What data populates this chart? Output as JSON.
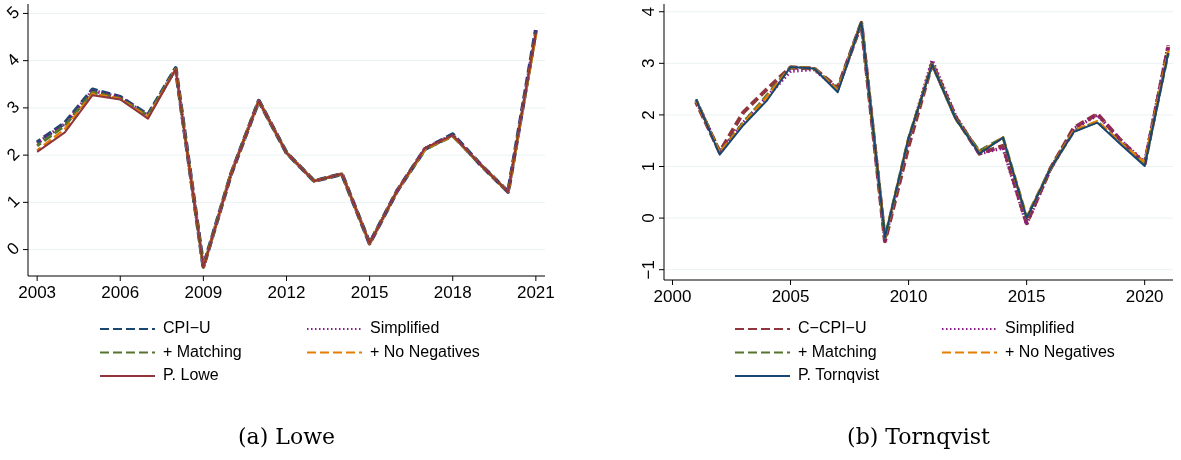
{
  "chart_data": [
    {
      "type": "line",
      "title": "(a) Lowe",
      "x": [
        2003,
        2004,
        2005,
        2006,
        2007,
        2008,
        2009,
        2010,
        2011,
        2012,
        2013,
        2014,
        2015,
        2016,
        2017,
        2018,
        2019,
        2020,
        2021
      ],
      "xlim": [
        2002.67,
        2021.33
      ],
      "xticks": [
        2003,
        2006,
        2009,
        2012,
        2015,
        2018,
        2021
      ],
      "ylim": [
        -0.56,
        5.2
      ],
      "yticks": [
        0,
        1,
        2,
        3,
        4,
        5
      ],
      "grid": "y",
      "legend": "bottom",
      "series": [
        {
          "name": "CPI−U",
          "color": "#1a476f",
          "line_style": "dashed",
          "values": [
            2.27,
            2.68,
            3.39,
            3.23,
            2.85,
            3.84,
            -0.36,
            1.6,
            3.15,
            2.05,
            1.45,
            1.6,
            0.13,
            1.25,
            2.13,
            2.44,
            1.8,
            1.22,
            4.65
          ]
        },
        {
          "name": "Simplified",
          "color": "#8b1a8b",
          "line_style": "dotted",
          "values": [
            2.25,
            2.66,
            3.37,
            3.22,
            2.84,
            3.83,
            -0.37,
            1.6,
            3.15,
            2.05,
            1.45,
            1.6,
            0.13,
            1.25,
            2.14,
            2.43,
            1.8,
            1.22,
            4.62
          ]
        },
        {
          "name": "+ Matching",
          "color": "#55752f",
          "line_style": "dashed",
          "values": [
            2.2,
            2.62,
            3.33,
            3.2,
            2.83,
            3.82,
            -0.37,
            1.62,
            3.15,
            2.05,
            1.45,
            1.6,
            0.13,
            1.25,
            2.12,
            2.4,
            1.8,
            1.22,
            4.57
          ]
        },
        {
          "name": "+ No Negatives",
          "color": "#e37e00",
          "line_style": "dashed",
          "values": [
            2.1,
            2.55,
            3.3,
            3.19,
            2.8,
            3.82,
            -0.38,
            1.6,
            3.15,
            2.05,
            1.45,
            1.6,
            0.13,
            1.25,
            2.13,
            2.41,
            1.8,
            1.22,
            4.55
          ]
        },
        {
          "name": "P. Lowe",
          "color": "#90353b",
          "line_style": "solid",
          "values": [
            2.07,
            2.48,
            3.27,
            3.18,
            2.77,
            3.82,
            -0.38,
            1.6,
            3.15,
            2.05,
            1.45,
            1.6,
            0.13,
            1.25,
            2.15,
            2.42,
            1.8,
            1.22,
            4.6
          ]
        }
      ]
    },
    {
      "type": "line",
      "title": "(b) Tornqvist",
      "x": [
        2001,
        2002,
        2003,
        2004,
        2005,
        2006,
        2007,
        2008,
        2009,
        2010,
        2011,
        2012,
        2013,
        2014,
        2015,
        2016,
        2017,
        2018,
        2019,
        2020,
        2021
      ],
      "xlim": [
        1999.64,
        2021.2
      ],
      "xticks": [
        2000,
        2005,
        2010,
        2015,
        2020
      ],
      "ylim": [
        -1.2,
        4.15
      ],
      "yticks": [
        {
          "value": -1,
          "label": "−1"
        },
        0,
        1,
        2,
        3,
        4
      ],
      "grid": "y",
      "legend": "bottom",
      "series": [
        {
          "name": "C−CPI−U",
          "color": "#90353b",
          "line_style": "dashed",
          "values": [
            2.25,
            1.28,
            2.05,
            2.5,
            2.92,
            2.9,
            2.52,
            3.78,
            -0.45,
            1.4,
            3.0,
            1.95,
            1.25,
            1.4,
            -0.1,
            0.95,
            1.75,
            2.02,
            1.5,
            1.05,
            3.32
          ]
        },
        {
          "name": "Simplified",
          "color": "#8b1a8b",
          "line_style": "dotted",
          "values": [
            2.28,
            1.28,
            1.85,
            2.35,
            2.85,
            2.88,
            2.5,
            3.78,
            -0.42,
            1.5,
            3.06,
            1.97,
            1.25,
            1.36,
            -0.12,
            0.95,
            1.73,
            2.0,
            1.5,
            1.08,
            3.35
          ]
        },
        {
          "name": "+ Matching",
          "color": "#55752f",
          "line_style": "dashed",
          "values": [
            2.3,
            1.27,
            1.85,
            2.38,
            2.93,
            2.9,
            2.5,
            3.8,
            -0.38,
            1.55,
            2.98,
            1.92,
            1.3,
            1.56,
            0.02,
            0.95,
            1.68,
            1.87,
            1.45,
            1.05,
            3.2
          ]
        },
        {
          "name": "+ No Negatives",
          "color": "#e37e00",
          "line_style": "dashed",
          "values": [
            2.28,
            1.27,
            1.83,
            2.35,
            2.93,
            2.9,
            2.48,
            3.8,
            -0.38,
            1.55,
            2.98,
            1.92,
            1.27,
            1.56,
            0.01,
            0.95,
            1.7,
            1.88,
            1.45,
            1.08,
            3.25
          ]
        },
        {
          "name": "P. Tornqvist",
          "color": "#1a476f",
          "line_style": "solid",
          "values": [
            2.3,
            1.23,
            1.8,
            2.28,
            2.93,
            2.9,
            2.44,
            3.8,
            -0.37,
            1.55,
            2.97,
            1.92,
            1.25,
            1.56,
            0.0,
            0.95,
            1.67,
            1.85,
            1.42,
            1.01,
            3.2
          ]
        }
      ]
    }
  ]
}
